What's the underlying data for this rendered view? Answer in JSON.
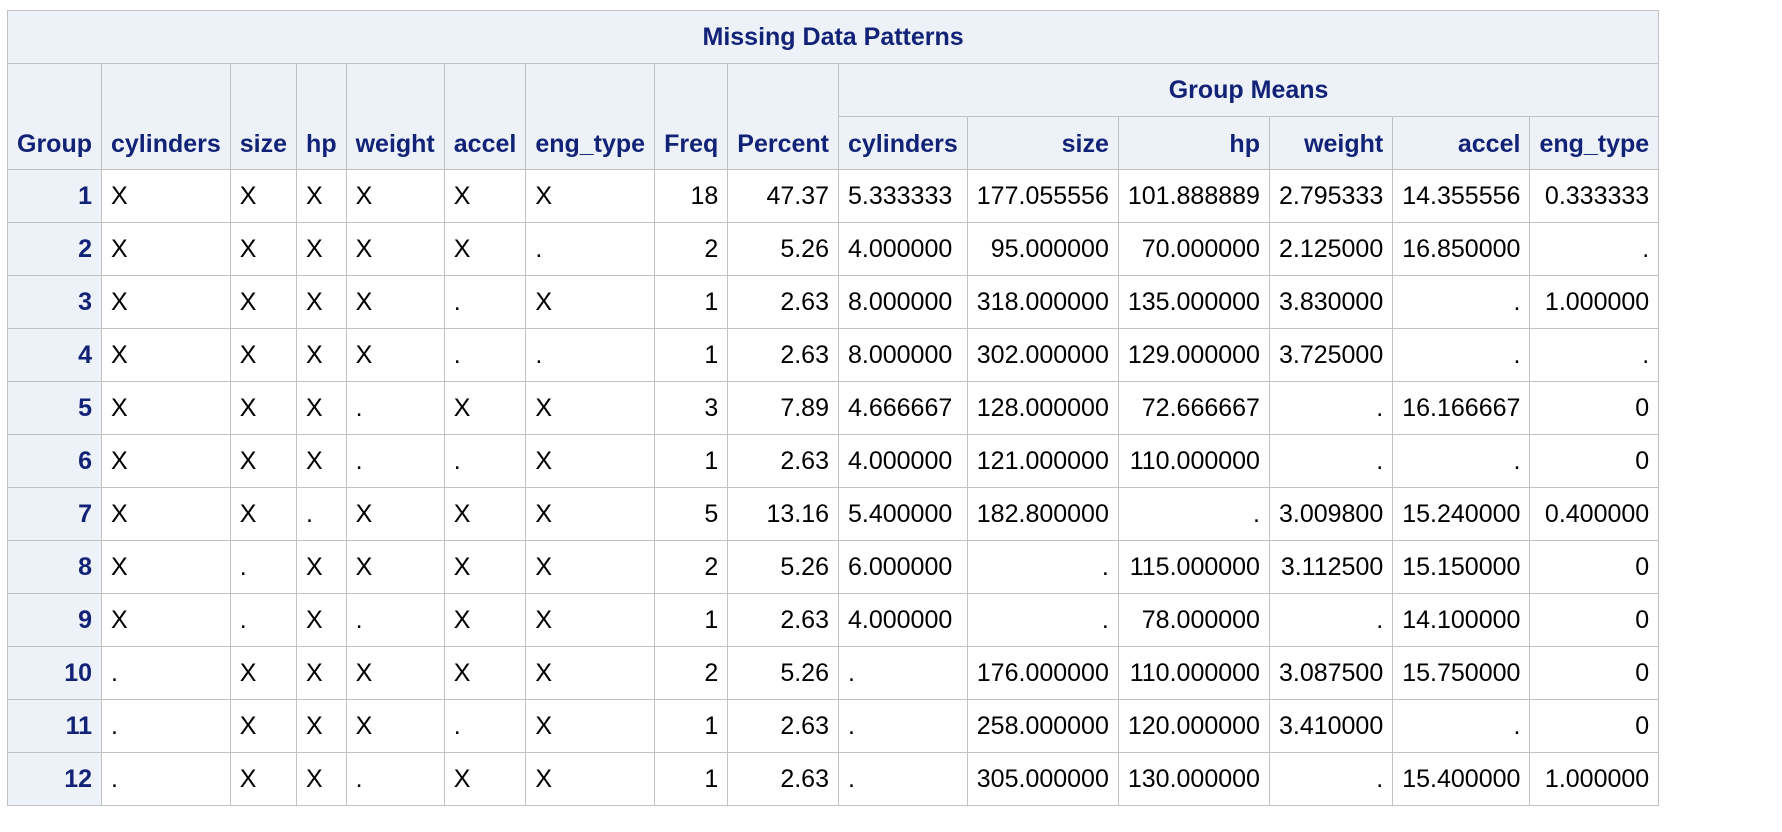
{
  "table": {
    "title": "Missing Data Patterns",
    "group_means_label": "Group Means",
    "pattern_headers": [
      "Group",
      "cylinders",
      "size",
      "hp",
      "weight",
      "accel",
      "eng_type",
      "Freq",
      "Percent"
    ],
    "mean_headers": [
      "cylinders",
      "size",
      "hp",
      "weight",
      "accel",
      "eng_type"
    ],
    "rows": [
      {
        "group": "1",
        "pattern": [
          "X",
          "X",
          "X",
          "X",
          "X",
          "X"
        ],
        "freq": "18",
        "percent": "47.37",
        "means": [
          "5.333333",
          "177.055556",
          "101.888889",
          "2.795333",
          "14.355556",
          "0.333333"
        ]
      },
      {
        "group": "2",
        "pattern": [
          "X",
          "X",
          "X",
          "X",
          "X",
          "."
        ],
        "freq": "2",
        "percent": "5.26",
        "means": [
          "4.000000",
          "95.000000",
          "70.000000",
          "2.125000",
          "16.850000",
          "."
        ]
      },
      {
        "group": "3",
        "pattern": [
          "X",
          "X",
          "X",
          "X",
          ".",
          "X"
        ],
        "freq": "1",
        "percent": "2.63",
        "means": [
          "8.000000",
          "318.000000",
          "135.000000",
          "3.830000",
          ".",
          "1.000000"
        ]
      },
      {
        "group": "4",
        "pattern": [
          "X",
          "X",
          "X",
          "X",
          ".",
          "."
        ],
        "freq": "1",
        "percent": "2.63",
        "means": [
          "8.000000",
          "302.000000",
          "129.000000",
          "3.725000",
          ".",
          "."
        ]
      },
      {
        "group": "5",
        "pattern": [
          "X",
          "X",
          "X",
          ".",
          "X",
          "X"
        ],
        "freq": "3",
        "percent": "7.89",
        "means": [
          "4.666667",
          "128.000000",
          "72.666667",
          ".",
          "16.166667",
          "0"
        ]
      },
      {
        "group": "6",
        "pattern": [
          "X",
          "X",
          "X",
          ".",
          ".",
          "X"
        ],
        "freq": "1",
        "percent": "2.63",
        "means": [
          "4.000000",
          "121.000000",
          "110.000000",
          ".",
          ".",
          "0"
        ]
      },
      {
        "group": "7",
        "pattern": [
          "X",
          "X",
          ".",
          "X",
          "X",
          "X"
        ],
        "freq": "5",
        "percent": "13.16",
        "means": [
          "5.400000",
          "182.800000",
          ".",
          "3.009800",
          "15.240000",
          "0.400000"
        ]
      },
      {
        "group": "8",
        "pattern": [
          "X",
          ".",
          "X",
          "X",
          "X",
          "X"
        ],
        "freq": "2",
        "percent": "5.26",
        "means": [
          "6.000000",
          ".",
          "115.000000",
          "3.112500",
          "15.150000",
          "0"
        ]
      },
      {
        "group": "9",
        "pattern": [
          "X",
          ".",
          "X",
          ".",
          "X",
          "X"
        ],
        "freq": "1",
        "percent": "2.63",
        "means": [
          "4.000000",
          ".",
          "78.000000",
          ".",
          "14.100000",
          "0"
        ]
      },
      {
        "group": "10",
        "pattern": [
          ".",
          "X",
          "X",
          "X",
          "X",
          "X"
        ],
        "freq": "2",
        "percent": "5.26",
        "means": [
          ".",
          "176.000000",
          "110.000000",
          "3.087500",
          "15.750000",
          "0"
        ]
      },
      {
        "group": "11",
        "pattern": [
          ".",
          "X",
          "X",
          "X",
          ".",
          "X"
        ],
        "freq": "1",
        "percent": "2.63",
        "means": [
          ".",
          "258.000000",
          "120.000000",
          "3.410000",
          ".",
          "0"
        ]
      },
      {
        "group": "12",
        "pattern": [
          ".",
          "X",
          "X",
          ".",
          "X",
          "X"
        ],
        "freq": "1",
        "percent": "2.63",
        "means": [
          ".",
          "305.000000",
          "130.000000",
          ".",
          "15.400000",
          "1.000000"
        ]
      }
    ]
  }
}
